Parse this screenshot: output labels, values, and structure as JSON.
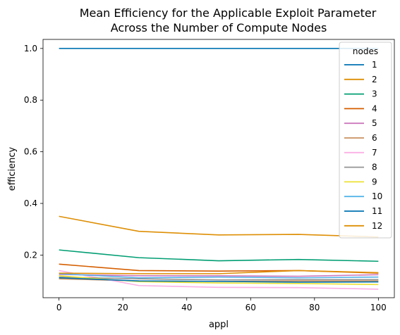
{
  "chart_data": {
    "type": "line",
    "title_lines": [
      "Mean Efficiency for the Applicable Exploit Parameter",
      "Across the Number of Compute Nodes"
    ],
    "xlabel": "appl",
    "ylabel": "efficiency",
    "xlim": [
      -5,
      105
    ],
    "ylim": [
      0.035,
      1.035
    ],
    "xticks": [
      0,
      20,
      40,
      60,
      80,
      100
    ],
    "yticks": [
      0.2,
      0.4,
      0.6,
      0.8,
      1.0
    ],
    "ytick_labels": [
      "0.2",
      "0.4",
      "0.6",
      "0.8",
      "1.0"
    ],
    "grid": false,
    "legend": {
      "title": "nodes",
      "placement": "top-right"
    },
    "x": [
      0,
      25,
      50,
      75,
      100
    ],
    "series": [
      {
        "name": "1",
        "color": "#0173b2",
        "values": [
          1.0,
          1.0,
          1.0,
          1.0,
          1.0
        ]
      },
      {
        "name": "2",
        "color": "#de8f05",
        "values": [
          0.35,
          0.292,
          0.278,
          0.28,
          0.27
        ]
      },
      {
        "name": "3",
        "color": "#029e73",
        "values": [
          0.22,
          0.19,
          0.178,
          0.183,
          0.176
        ]
      },
      {
        "name": "4",
        "color": "#d55e00",
        "values": [
          0.165,
          0.14,
          0.138,
          0.14,
          0.13
        ]
      },
      {
        "name": "5",
        "color": "#cc78bc",
        "values": [
          0.125,
          0.12,
          0.12,
          0.118,
          0.124
        ]
      },
      {
        "name": "6",
        "color": "#ca9161",
        "values": [
          0.108,
          0.1,
          0.098,
          0.1,
          0.1
        ]
      },
      {
        "name": "7",
        "color": "#fbafe4",
        "values": [
          0.14,
          0.082,
          0.075,
          0.074,
          0.068
        ]
      },
      {
        "name": "8",
        "color": "#949494",
        "values": [
          0.115,
          0.108,
          0.104,
          0.105,
          0.105
        ]
      },
      {
        "name": "9",
        "color": "#ece133",
        "values": [
          0.12,
          0.097,
          0.092,
          0.09,
          0.086
        ]
      },
      {
        "name": "10",
        "color": "#56b4e9",
        "values": [
          0.128,
          0.112,
          0.115,
          0.112,
          0.115
        ]
      },
      {
        "name": "11",
        "color": "#0173b2",
        "values": [
          0.112,
          0.1,
          0.098,
          0.095,
          0.096
        ]
      },
      {
        "name": "12",
        "color": "#de8f05",
        "values": [
          0.13,
          0.128,
          0.128,
          0.14,
          0.132
        ]
      }
    ]
  }
}
